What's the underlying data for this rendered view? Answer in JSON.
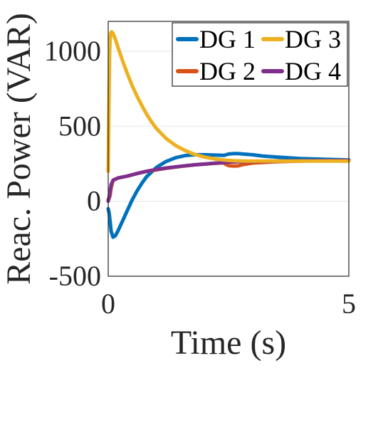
{
  "chart_data": {
    "type": "line",
    "title": "",
    "xlabel": "Time (s)",
    "ylabel": "Reac. Power (VAR)",
    "xlim": [
      0,
      5
    ],
    "ylim": [
      -500,
      1200
    ],
    "xticks": [
      0,
      5
    ],
    "yticks": [
      -500,
      0,
      500,
      1000
    ],
    "xtick_labels": [
      "0",
      "5"
    ],
    "ytick_labels": [
      "-500",
      "0",
      "500",
      "1000"
    ],
    "grid": true,
    "legend_position": "top-right",
    "series": [
      {
        "name": "DG 1",
        "color": "#0072BD",
        "x": [
          0,
          0.02,
          0.06,
          0.1,
          0.15,
          0.2,
          0.3,
          0.4,
          0.5,
          0.6,
          0.7,
          0.8,
          1.0,
          1.2,
          1.4,
          1.6,
          1.8,
          2.0,
          2.2,
          2.4,
          2.45,
          2.5,
          2.6,
          2.7,
          2.8,
          3.0,
          3.2,
          3.5,
          4.0,
          4.5,
          5.0
        ],
        "y": [
          -50,
          -80,
          -200,
          -240,
          -230,
          -200,
          -130,
          -60,
          10,
          70,
          120,
          165,
          225,
          265,
          290,
          305,
          310,
          310,
          308,
          306,
          310,
          315,
          318,
          318,
          315,
          310,
          302,
          295,
          285,
          280,
          275
        ]
      },
      {
        "name": "DG 2",
        "color": "#D95319",
        "x": [
          0,
          0.02,
          0.04,
          0.06,
          0.1,
          0.2,
          0.4,
          0.6,
          0.8,
          1.0,
          1.2,
          1.5,
          1.8,
          2.0,
          2.2,
          2.4,
          2.45,
          2.5,
          2.6,
          2.7,
          2.8,
          3.0,
          3.5,
          4.0,
          4.5,
          5.0
        ],
        "y": [
          10,
          20,
          40,
          90,
          140,
          155,
          168,
          185,
          200,
          210,
          220,
          232,
          243,
          248,
          253,
          256,
          245,
          238,
          235,
          236,
          245,
          255,
          264,
          268,
          270,
          272
        ]
      },
      {
        "name": "DG 3",
        "color": "#EDB120",
        "x": [
          0,
          0.01,
          0.02,
          0.03,
          0.04,
          0.05,
          0.07,
          0.1,
          0.15,
          0.2,
          0.3,
          0.4,
          0.5,
          0.6,
          0.7,
          0.8,
          0.9,
          1.0,
          1.2,
          1.4,
          1.6,
          1.8,
          2.0,
          2.2,
          2.4,
          2.6,
          2.8,
          3.0,
          3.5,
          4.0,
          4.5,
          5.0
        ],
        "y": [
          200,
          500,
          800,
          1000,
          1080,
          1120,
          1130,
          1120,
          1080,
          1030,
          935,
          850,
          770,
          700,
          638,
          580,
          530,
          486,
          420,
          372,
          338,
          312,
          295,
          283,
          275,
          270,
          268,
          268,
          268,
          268,
          268,
          268
        ]
      },
      {
        "name": "DG 4",
        "color": "#7E2F8E",
        "x": [
          0,
          0.02,
          0.04,
          0.06,
          0.1,
          0.2,
          0.4,
          0.6,
          0.8,
          1.0,
          1.2,
          1.5,
          1.8,
          2.0,
          2.2,
          2.4,
          2.5,
          2.6,
          2.8,
          3.0,
          3.5,
          4.0,
          4.5,
          5.0
        ],
        "y": [
          0,
          30,
          70,
          110,
          140,
          155,
          168,
          185,
          200,
          212,
          222,
          233,
          243,
          248,
          253,
          258,
          262,
          262,
          265,
          266,
          268,
          270,
          271,
          272
        ]
      }
    ]
  }
}
